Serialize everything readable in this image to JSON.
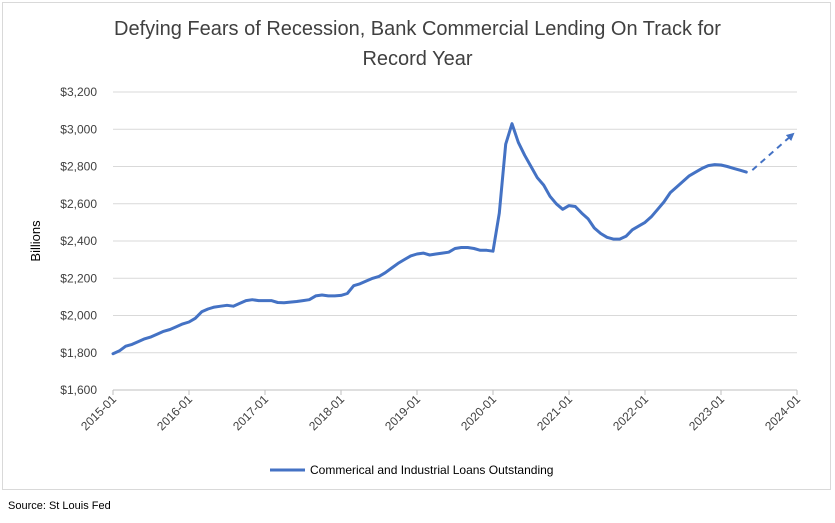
{
  "chart_data": {
    "type": "line",
    "title_line1": "Defying Fears of Recession, Bank Commercial Lending On Track for",
    "title_line2": "Record Year",
    "ylabel": "Billions",
    "ylim": [
      1600,
      3200
    ],
    "yticks": [
      1600,
      1800,
      2000,
      2200,
      2400,
      2600,
      2800,
      3000,
      3200
    ],
    "ytick_labels": [
      "$1,600",
      "$1,800",
      "$2,000",
      "$2,200",
      "$2,400",
      "$2,600",
      "$2,800",
      "$3,000",
      "$3,200"
    ],
    "xticks": [
      "2015-01",
      "2016-01",
      "2017-01",
      "2018-01",
      "2019-01",
      "2020-01",
      "2021-01",
      "2022-01",
      "2023-01",
      "2024-01"
    ],
    "grid": "horizontal",
    "legend": "bottom",
    "series": [
      {
        "name": "Commerical and Industrial Loans Outstanding",
        "color": "#4472c4",
        "x": [
          "2015-01",
          "2015-02",
          "2015-03",
          "2015-04",
          "2015-05",
          "2015-06",
          "2015-07",
          "2015-08",
          "2015-09",
          "2015-10",
          "2015-11",
          "2015-12",
          "2016-01",
          "2016-02",
          "2016-03",
          "2016-04",
          "2016-05",
          "2016-06",
          "2016-07",
          "2016-08",
          "2016-09",
          "2016-10",
          "2016-11",
          "2016-12",
          "2017-01",
          "2017-02",
          "2017-03",
          "2017-04",
          "2017-05",
          "2017-06",
          "2017-07",
          "2017-08",
          "2017-09",
          "2017-10",
          "2017-11",
          "2017-12",
          "2018-01",
          "2018-02",
          "2018-03",
          "2018-04",
          "2018-05",
          "2018-06",
          "2018-07",
          "2018-08",
          "2018-09",
          "2018-10",
          "2018-11",
          "2018-12",
          "2019-01",
          "2019-02",
          "2019-03",
          "2019-04",
          "2019-05",
          "2019-06",
          "2019-07",
          "2019-08",
          "2019-09",
          "2019-10",
          "2019-11",
          "2019-12",
          "2020-01",
          "2020-02",
          "2020-03",
          "2020-04",
          "2020-05",
          "2020-06",
          "2020-07",
          "2020-08",
          "2020-09",
          "2020-10",
          "2020-11",
          "2020-12",
          "2021-01",
          "2021-02",
          "2021-03",
          "2021-04",
          "2021-05",
          "2021-06",
          "2021-07",
          "2021-08",
          "2021-09",
          "2021-10",
          "2021-11",
          "2021-12",
          "2022-01",
          "2022-02",
          "2022-03",
          "2022-04",
          "2022-05",
          "2022-06",
          "2022-07",
          "2022-08",
          "2022-09",
          "2022-10",
          "2022-11",
          "2022-12",
          "2023-01",
          "2023-02",
          "2023-03",
          "2023-04",
          "2023-05"
        ],
        "values": [
          1795,
          1810,
          1835,
          1845,
          1860,
          1875,
          1885,
          1900,
          1915,
          1925,
          1940,
          1955,
          1965,
          1985,
          2020,
          2035,
          2045,
          2050,
          2055,
          2050,
          2065,
          2080,
          2085,
          2080,
          2080,
          2080,
          2070,
          2068,
          2072,
          2075,
          2080,
          2085,
          2105,
          2110,
          2105,
          2105,
          2108,
          2118,
          2160,
          2170,
          2185,
          2200,
          2210,
          2230,
          2255,
          2280,
          2300,
          2320,
          2330,
          2335,
          2325,
          2330,
          2335,
          2340,
          2360,
          2365,
          2365,
          2360,
          2350,
          2350,
          2345,
          2550,
          2920,
          3030,
          2930,
          2860,
          2800,
          2740,
          2700,
          2640,
          2600,
          2570,
          2590,
          2585,
          2550,
          2520,
          2470,
          2440,
          2420,
          2410,
          2410,
          2425,
          2460,
          2480,
          2500,
          2530,
          2570,
          2610,
          2660,
          2690,
          2720,
          2750,
          2770,
          2790,
          2805,
          2810,
          2808,
          2800,
          2790,
          2780,
          2770
        ]
      }
    ],
    "projection": {
      "style": "dashed-arrow",
      "color": "#4472c4",
      "from": {
        "x": "2023-05",
        "y": 2770
      },
      "to": {
        "x": "2024-01",
        "y": 2990
      }
    }
  },
  "source_note": "Source: St Louis Fed"
}
